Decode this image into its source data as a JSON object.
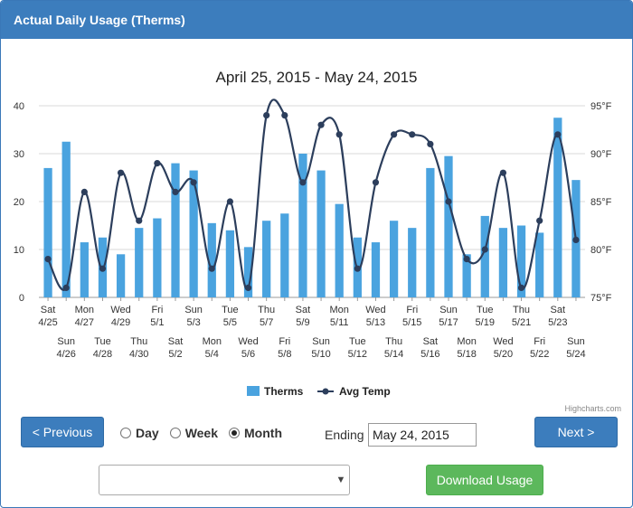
{
  "header": {
    "title": "Actual Daily Usage (Therms)"
  },
  "chart_data": {
    "type": "bar+line",
    "title": "April 25, 2015 - May 24, 2015",
    "categories_top": [
      "Sat",
      "Sun",
      "Mon",
      "Tue",
      "Wed",
      "Thu",
      "Fri",
      "Sat",
      "Sun",
      "Mon",
      "Tue",
      "Wed",
      "Thu",
      "Fri",
      "Sat",
      "Sun",
      "Mon",
      "Tue",
      "Wed",
      "Thu",
      "Fri",
      "Sat",
      "Sun",
      "Mon",
      "Tue",
      "Wed",
      "Thu",
      "Fri",
      "Sat",
      "Sun"
    ],
    "categories_bottom": [
      "4/25",
      "4/26",
      "4/27",
      "4/28",
      "4/29",
      "4/30",
      "5/1",
      "5/2",
      "5/3",
      "5/4",
      "5/5",
      "5/6",
      "5/7",
      "5/8",
      "5/9",
      "5/10",
      "5/11",
      "5/12",
      "5/13",
      "5/14",
      "5/15",
      "5/16",
      "5/17",
      "5/18",
      "5/19",
      "5/20",
      "5/21",
      "5/22",
      "5/23",
      "5/24"
    ],
    "y_left": {
      "min": 0,
      "max": 40,
      "ticks": [
        "0",
        "10",
        "20",
        "30",
        "40"
      ]
    },
    "y_right": {
      "min": 75,
      "max": 95,
      "ticks": [
        "75°F",
        "80°F",
        "85°F",
        "90°F",
        "95°F"
      ]
    },
    "grid": true,
    "legend_position": "bottom-center",
    "series": [
      {
        "name": "Therms",
        "type": "column",
        "color": "#4aa3df",
        "values": [
          27,
          32.5,
          11.5,
          12.5,
          9,
          14.5,
          16.5,
          28,
          26.5,
          15.5,
          14,
          10.5,
          16,
          17.5,
          30,
          26.5,
          19.5,
          12.5,
          11.5,
          16,
          14.5,
          27,
          29.5,
          9,
          17,
          14.5,
          15,
          13.5,
          37.5,
          24.5
        ]
      },
      {
        "name": "Avg Temp",
        "type": "spline",
        "color": "#2c3e5c",
        "values": [
          79,
          76,
          86,
          78,
          88,
          83,
          89,
          86,
          87,
          78,
          85,
          76,
          94,
          94,
          87,
          93,
          92,
          78,
          87,
          92,
          92,
          91,
          85,
          79,
          80,
          88,
          76,
          83,
          92,
          81
        ]
      }
    ],
    "credits": "Highcharts.com"
  },
  "controls": {
    "previous_label": "< Previous",
    "next_label": "Next >",
    "radio_day": "Day",
    "radio_week": "Week",
    "radio_month": "Month",
    "selected_period": "Month",
    "ending_label": "Ending",
    "ending_value": "May 24, 2015",
    "select_value": "",
    "download_label": "Download Usage"
  }
}
